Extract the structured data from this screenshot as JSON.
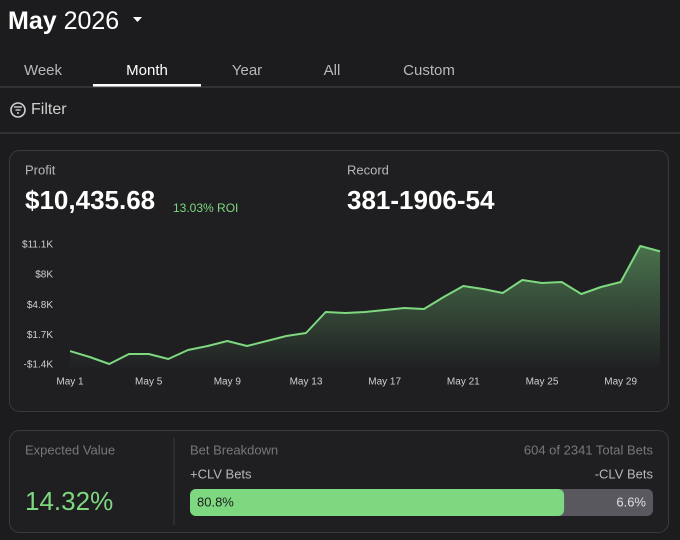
{
  "header": {
    "title": "May",
    "year": "2026"
  },
  "tabs": [
    "Week",
    "Month",
    "Year",
    "All",
    "Custom"
  ],
  "active_tab": 1,
  "filter": "Filter",
  "summary": {
    "profit_label": "Profit",
    "profit": "$10,435.68",
    "roi": "13.03% ROI",
    "record_label": "Record",
    "record": "381-1906-54"
  },
  "profit_chart": {
    "type": "line",
    "color": "#7dd87f",
    "categories": [
      "May 1",
      null,
      null,
      null,
      "May 5",
      null,
      null,
      null,
      "May 9",
      null,
      null,
      null,
      "May 13",
      null,
      null,
      null,
      "May 17",
      null,
      null,
      null,
      "May 21",
      null,
      null,
      null,
      "May 25",
      null,
      null,
      null,
      "May 29",
      null,
      null
    ],
    "values": [
      50,
      -566,
      -1296,
      -254,
      -254,
      -775,
      163,
      580,
      1100,
      580,
      1100,
      1622,
      1934,
      4123,
      4018,
      4123,
      4331,
      4540,
      4435,
      5686,
      6832,
      6519,
      6102,
      7457,
      7144,
      7249,
      5998,
      6728,
      7249,
      11000,
      10436
    ],
    "ylim": [
      -1400,
      11100
    ],
    "yticks": [
      {
        "value": 11100,
        "label": "$11.1K"
      },
      {
        "value": 8000,
        "label": "$8K"
      },
      {
        "value": 4800,
        "label": "$4.8K"
      },
      {
        "value": 1700,
        "label": "$1.7K"
      },
      {
        "value": -1400,
        "label": "-$1.4K"
      }
    ]
  },
  "expected_value": {
    "label": "Expected Value",
    "value": "14.32%"
  },
  "breakdown": {
    "title": "Bet Breakdown",
    "total": "604 of 2341 Total Bets",
    "positive_label": "+CLV Bets",
    "negative_label": "-CLV Bets",
    "positive": {
      "value": 80.8,
      "label": "80.8%"
    },
    "negative": "6.6%"
  }
}
